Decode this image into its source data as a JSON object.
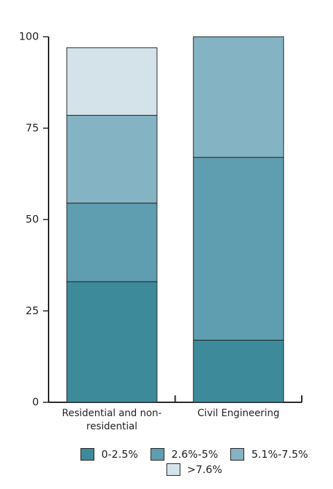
{
  "chart_data": {
    "type": "stacked_bar",
    "categories": [
      "Residential and non-residential",
      "Civil Engineering"
    ],
    "series": [
      {
        "name": "0-2.5%",
        "color": "#3d8a9b",
        "values": [
          33,
          17
        ]
      },
      {
        "name": "2.6%-5%",
        "color": "#5f9db0",
        "values": [
          21.5,
          50
        ]
      },
      {
        "name": "5.1%-7.5%",
        "color": "#84b3c3",
        "values": [
          24,
          33
        ]
      },
      {
        "name": ">7.6%",
        "color": "#d4e3ea",
        "values": [
          18.5,
          0
        ]
      }
    ],
    "ylim": [
      0,
      100
    ],
    "yticks": [
      0,
      25,
      50,
      75,
      100
    ]
  }
}
